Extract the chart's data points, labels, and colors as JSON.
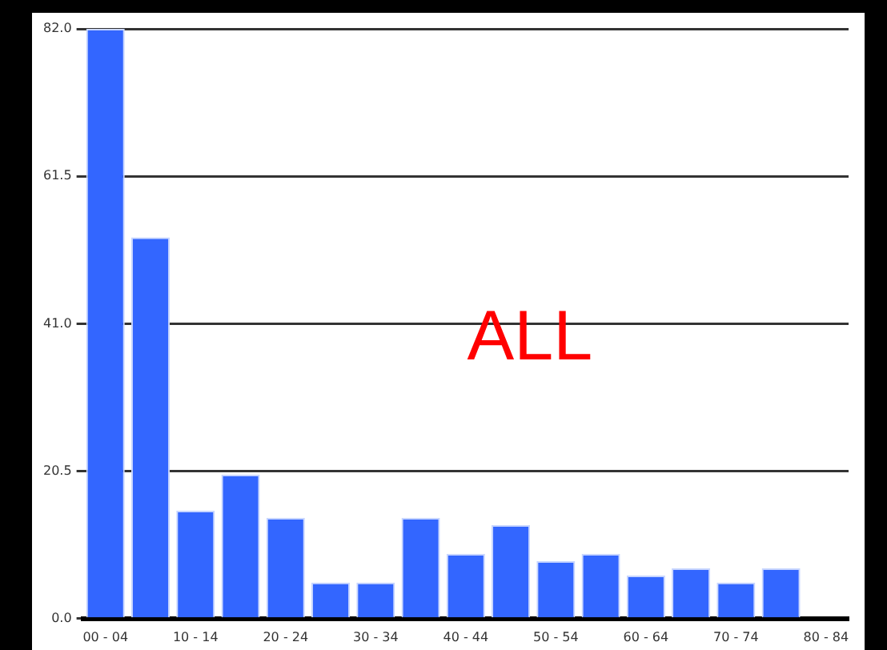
{
  "chart_data": {
    "type": "bar",
    "categories": [
      "00 - 04",
      null,
      "10 - 14",
      null,
      "20 - 24",
      null,
      "30 - 34",
      null,
      "40 - 44",
      null,
      "50 - 54",
      null,
      "60 - 64",
      null,
      "70 - 74",
      null,
      "80 - 84"
    ],
    "values": [
      82,
      53,
      15,
      20,
      14,
      5,
      5,
      14,
      9,
      13,
      8,
      9,
      6,
      7,
      5,
      7,
      0
    ],
    "color": "#3366ff",
    "ylim": [
      0,
      82
    ],
    "yticks": [
      {
        "value": 0,
        "label": "0.0"
      },
      {
        "value": 20.5,
        "label": "20.5"
      },
      {
        "value": 41,
        "label": "41.0"
      },
      {
        "value": 61.5,
        "label": "61.5"
      },
      {
        "value": 82,
        "label": "82.0"
      }
    ],
    "grid": "y",
    "legend": false,
    "annotations": [
      "ALL"
    ]
  }
}
